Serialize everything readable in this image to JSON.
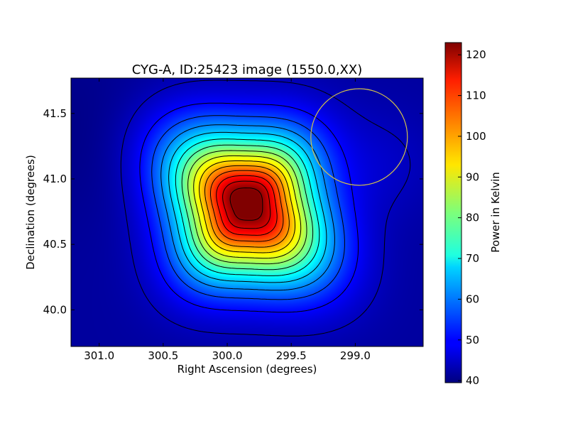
{
  "chart_data": {
    "type": "heatmap",
    "title": "CYG-A, ID:25423 image (1550.0,XX)",
    "xlabel": "Right Ascension (degrees)",
    "ylabel": "Declination (degrees)",
    "colorbar_label": "Power in Kelvin",
    "colormap": "jet",
    "xlim": [
      301.22,
      298.47
    ],
    "ylim": [
      39.72,
      41.77
    ],
    "clim": [
      39.5,
      123.0
    ],
    "xticks": [
      {
        "value": 301.0,
        "label": "301.0"
      },
      {
        "value": 300.5,
        "label": "300.5"
      },
      {
        "value": 300.0,
        "label": "300.0"
      },
      {
        "value": 299.5,
        "label": "299.5"
      },
      {
        "value": 299.0,
        "label": "299.0"
      }
    ],
    "yticks": [
      {
        "value": 40.0,
        "label": "40.0"
      },
      {
        "value": 40.5,
        "label": "40.5"
      },
      {
        "value": 41.0,
        "label": "41.0"
      },
      {
        "value": 41.5,
        "label": "41.5"
      }
    ],
    "colorbar_ticks": [
      {
        "value": 40,
        "label": "40"
      },
      {
        "value": 50,
        "label": "50"
      },
      {
        "value": 60,
        "label": "60"
      },
      {
        "value": 70,
        "label": "70"
      },
      {
        "value": 80,
        "label": "80"
      },
      {
        "value": 90,
        "label": "90"
      },
      {
        "value": 100,
        "label": "100"
      },
      {
        "value": 110,
        "label": "110"
      },
      {
        "value": 120,
        "label": "120"
      }
    ],
    "peak": {
      "ra": 299.85,
      "dec": 40.86,
      "value": 123.0
    },
    "contours": "black, approx. every 5.5 K",
    "beam_circle": {
      "ra": 298.97,
      "dec": 41.32,
      "color": "#d4c24a"
    }
  }
}
